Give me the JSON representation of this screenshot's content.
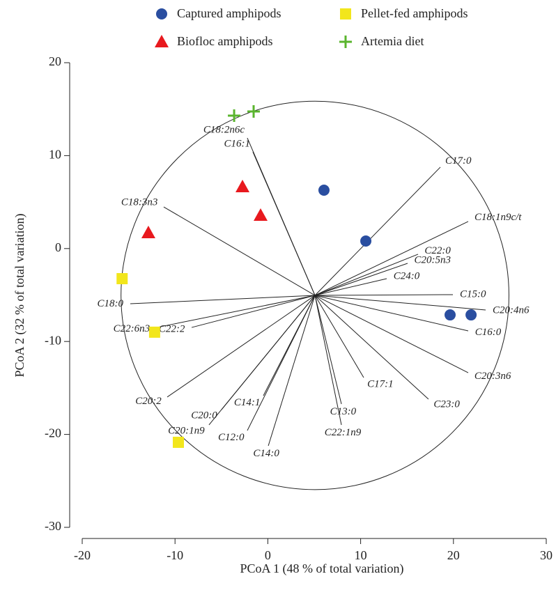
{
  "chart_data": {
    "type": "biplot",
    "x_label": "PCoA 1 (48 % of total variation)",
    "y_label": "PCoA 2 (32 % of total variation)",
    "xlim": [
      -20,
      30
    ],
    "xticks": [
      -20,
      -10,
      0,
      10,
      20,
      30
    ],
    "ylim": [
      -30,
      20
    ],
    "yticks": [
      -30,
      -20,
      -10,
      0,
      10,
      20
    ],
    "series": [
      {
        "name": "Captured amphipods",
        "color": "#2a4ea0",
        "marker": "circle",
        "x": [
          6.05,
          10.56,
          19.64,
          21.9
        ],
        "y": [
          6.28,
          0.81,
          -7.14,
          -7.14
        ]
      },
      {
        "name": "Pellet-fed amphipods",
        "color": "#f2e61c",
        "marker": "square",
        "x": [
          -15.7,
          -12.2,
          -9.64
        ],
        "y": [
          -3.24,
          -9.0,
          -20.85
        ]
      },
      {
        "name": "Biofloc amphipods",
        "color": "#e8191e",
        "marker": "triangle",
        "x": [
          -2.73,
          -0.78,
          -12.87
        ],
        "y": [
          6.66,
          3.58,
          1.71
        ]
      },
      {
        "name": "Artemia diet",
        "color": "#5ab52e",
        "marker": "plus",
        "x": [
          -3.63,
          -1.53
        ],
        "y": [
          14.3,
          14.75
        ]
      }
    ],
    "circle": {
      "center": [
        5.08,
        -5.04
      ],
      "radius": 20.9
    },
    "vectors": [
      {
        "name": "C18:2n6c",
        "x": -2.21,
        "y": 11.9
      },
      {
        "name": "C16:1",
        "x": -1.61,
        "y": 10.4
      },
      {
        "name": "C17:0",
        "x": 18.59,
        "y": 8.76
      },
      {
        "name": "C18:3n3",
        "x": -11.22,
        "y": 4.48
      },
      {
        "name": "C18:1n9c/t",
        "x": 21.59,
        "y": 2.91
      },
      {
        "name": "C22:0",
        "x": 16.19,
        "y": -0.61
      },
      {
        "name": "C20:5n3",
        "x": 15.06,
        "y": -1.59
      },
      {
        "name": "C24:0",
        "x": 12.81,
        "y": -3.24
      },
      {
        "name": "C15:0",
        "x": 19.94,
        "y": -4.96
      },
      {
        "name": "C20:4n6",
        "x": 23.47,
        "y": -6.61
      },
      {
        "name": "C16:0",
        "x": 21.59,
        "y": -8.86
      },
      {
        "name": "C20:3n6",
        "x": 21.59,
        "y": -13.36
      },
      {
        "name": "C23:0",
        "x": 17.31,
        "y": -16.21
      },
      {
        "name": "C17:1",
        "x": 10.33,
        "y": -13.88
      },
      {
        "name": "C13:0",
        "x": 7.93,
        "y": -16.73
      },
      {
        "name": "C22:1n9",
        "x": 7.93,
        "y": -18.98
      },
      {
        "name": "C18:0",
        "x": -14.82,
        "y": -5.94
      },
      {
        "name": "C22:6n3",
        "x": -11.97,
        "y": -8.49
      },
      {
        "name": "C22:2",
        "x": -8.21,
        "y": -8.49
      },
      {
        "name": "C20:2",
        "x": -10.84,
        "y": -15.98
      },
      {
        "name": "C20:0",
        "x": -4.98,
        "y": -17.33
      },
      {
        "name": "C14:1",
        "x": -0.48,
        "y": -15.83
      },
      {
        "name": "C20:1n9",
        "x": -6.34,
        "y": -18.98
      },
      {
        "name": "C12:0",
        "x": -2.21,
        "y": -19.58
      },
      {
        "name": "C14:0",
        "x": 0.05,
        "y": -21.23
      }
    ]
  }
}
